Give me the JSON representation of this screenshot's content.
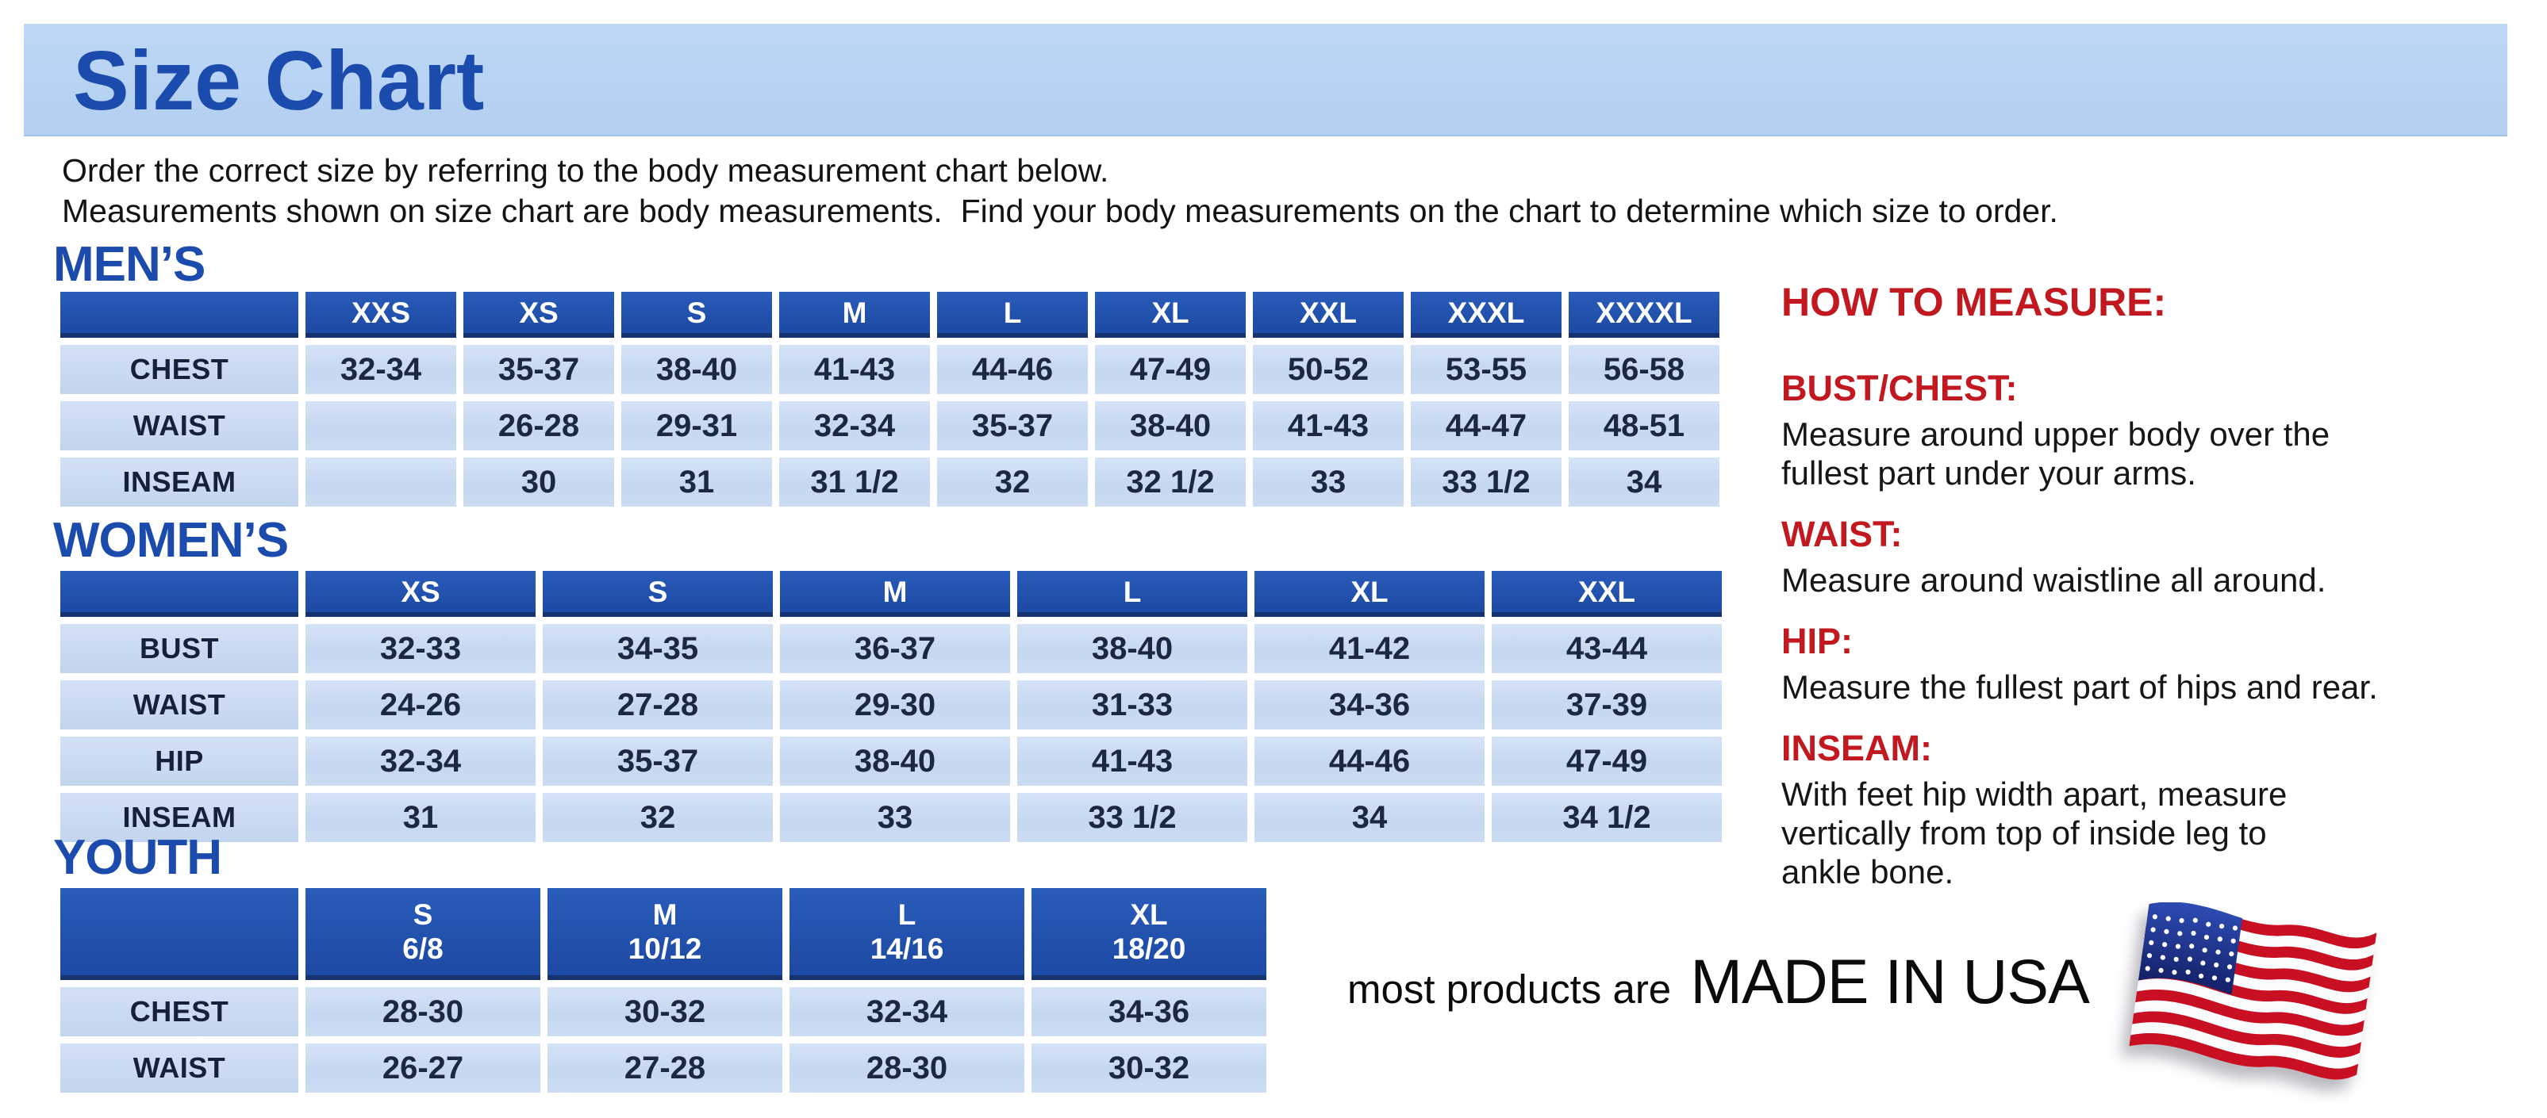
{
  "page": {
    "title": "Size Chart",
    "intro_line1": "Order the correct size by referring to the body measurement chart below.",
    "intro_line2": "Measurements shown on size chart are body measurements.  Find your body measurements on the chart to determine which size to order."
  },
  "colors": {
    "band_blue": "#b8d3f2",
    "header_blue": "#1f50ae",
    "cell_blue": "#cbdcf3",
    "heading_blue": "#1b4bad",
    "accent_red": "#c2181f",
    "flag_red": "#c90f22",
    "flag_navy": "#1f3b9b"
  },
  "tables": {
    "mens": {
      "section_label": "MEN’S",
      "columns": [
        "XXS",
        "XS",
        "S",
        "M",
        "L",
        "XL",
        "XXL",
        "XXXL",
        "XXXXL"
      ],
      "rows": [
        {
          "label": "CHEST",
          "values": [
            "32-34",
            "35-37",
            "38-40",
            "41-43",
            "44-46",
            "47-49",
            "50-52",
            "53-55",
            "56-58"
          ]
        },
        {
          "label": "WAIST",
          "values": [
            "",
            "26-28",
            "29-31",
            "32-34",
            "35-37",
            "38-40",
            "41-43",
            "44-47",
            "48-51"
          ]
        },
        {
          "label": "INSEAM",
          "values": [
            "",
            "30",
            "31",
            "31 1/2",
            "32",
            "32 1/2",
            "33",
            "33 1/2",
            "34"
          ]
        }
      ]
    },
    "womens": {
      "section_label": "WOMEN’S",
      "columns": [
        "XS",
        "S",
        "M",
        "L",
        "XL",
        "XXL"
      ],
      "rows": [
        {
          "label": "BUST",
          "values": [
            "32-33",
            "34-35",
            "36-37",
            "38-40",
            "41-42",
            "43-44"
          ]
        },
        {
          "label": "WAIST",
          "values": [
            "24-26",
            "27-28",
            "29-30",
            "31-33",
            "34-36",
            "37-39"
          ]
        },
        {
          "label": "HIP",
          "values": [
            "32-34",
            "35-37",
            "38-40",
            "41-43",
            "44-46",
            "47-49"
          ]
        },
        {
          "label": "INSEAM",
          "values": [
            "31",
            "32",
            "33",
            "33 1/2",
            "34",
            "34 1/2"
          ]
        }
      ]
    },
    "youth": {
      "section_label": "YOUTH",
      "columns": [
        "S\n6/8",
        "M\n10/12",
        "L\n14/16",
        "XL\n18/20"
      ],
      "rows": [
        {
          "label": "CHEST",
          "values": [
            "28-30",
            "30-32",
            "32-34",
            "34-36"
          ]
        },
        {
          "label": "WAIST",
          "values": [
            "26-27",
            "27-28",
            "28-30",
            "30-32"
          ]
        }
      ]
    }
  },
  "how_to_measure": {
    "title": "HOW TO MEASURE:",
    "items": [
      {
        "label": "BUST/CHEST:",
        "text": "Measure around upper body over the\nfullest part under your arms."
      },
      {
        "label": "WAIST:",
        "text": "Measure around waistline all around."
      },
      {
        "label": "HIP:",
        "text": "Measure the fullest part of hips and rear."
      },
      {
        "label": "INSEAM:",
        "text": "With feet hip width apart, measure\nvertically from top of inside leg to\nankle bone."
      }
    ]
  },
  "footer": {
    "prefix": "most products are",
    "made_in": "MADE IN USA",
    "flag_icon": "usa-flag-icon"
  }
}
